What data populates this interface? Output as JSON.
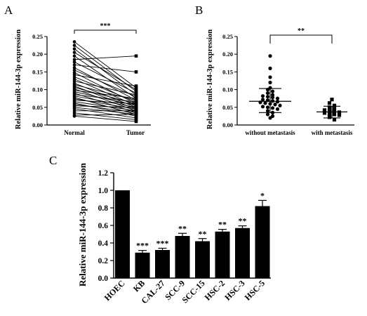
{
  "panels": {
    "a": {
      "label": "A"
    },
    "b": {
      "label": "B"
    },
    "c": {
      "label": "C"
    }
  },
  "chart_data": [
    {
      "panel": "A",
      "type": "line",
      "ylabel": "Relative miR-144-3p expression",
      "categories": [
        "Normal",
        "Tumor"
      ],
      "ylim": [
        0,
        0.25
      ],
      "yticks": [
        "0.00",
        "0.05",
        "0.10",
        "0.15",
        "0.20",
        "0.25"
      ],
      "significance": "***",
      "pairs": [
        [
          0.235,
          0.105
        ],
        [
          0.225,
          0.095
        ],
        [
          0.215,
          0.085
        ],
        [
          0.205,
          0.1
        ],
        [
          0.195,
          0.075
        ],
        [
          0.185,
          0.195
        ],
        [
          0.178,
          0.09
        ],
        [
          0.17,
          0.15
        ],
        [
          0.162,
          0.07
        ],
        [
          0.155,
          0.08
        ],
        [
          0.148,
          0.06
        ],
        [
          0.142,
          0.11
        ],
        [
          0.136,
          0.065
        ],
        [
          0.13,
          0.055
        ],
        [
          0.124,
          0.085
        ],
        [
          0.118,
          0.05
        ],
        [
          0.114,
          0.07
        ],
        [
          0.11,
          0.045
        ],
        [
          0.106,
          0.06
        ],
        [
          0.102,
          0.04
        ],
        [
          0.098,
          0.075
        ],
        [
          0.094,
          0.055
        ],
        [
          0.09,
          0.035
        ],
        [
          0.086,
          0.065
        ],
        [
          0.082,
          0.05
        ],
        [
          0.078,
          0.03
        ],
        [
          0.074,
          0.045
        ],
        [
          0.07,
          0.06
        ],
        [
          0.066,
          0.04
        ],
        [
          0.062,
          0.025
        ],
        [
          0.058,
          0.035
        ],
        [
          0.054,
          0.05
        ],
        [
          0.05,
          0.03
        ],
        [
          0.046,
          0.02
        ],
        [
          0.04,
          0.04
        ],
        [
          0.034,
          0.015
        ],
        [
          0.028,
          0.03
        ],
        [
          0.025,
          0.01
        ]
      ]
    },
    {
      "panel": "B",
      "type": "scatter",
      "ylabel": "Relative miR-144-3p expression",
      "categories": [
        "without metastasis",
        "with metastasis"
      ],
      "ylim": [
        0,
        0.25
      ],
      "yticks": [
        "0.00",
        "0.05",
        "0.10",
        "0.15",
        "0.20",
        "0.25"
      ],
      "significance": "**",
      "groups": [
        {
          "category": "without metastasis",
          "marker": "circle",
          "mean": 0.067,
          "sd_low": 0.035,
          "sd_high": 0.103,
          "points": [
            0.195,
            0.16,
            0.135,
            0.12,
            0.105,
            0.1,
            0.095,
            0.09,
            0.085,
            0.082,
            0.08,
            0.078,
            0.075,
            0.072,
            0.07,
            0.068,
            0.066,
            0.064,
            0.062,
            0.06,
            0.058,
            0.055,
            0.052,
            0.05,
            0.048,
            0.045,
            0.04,
            0.035,
            0.03,
            0.025,
            0.02
          ]
        },
        {
          "category": "with metastasis",
          "marker": "square",
          "mean": 0.037,
          "sd_low": 0.02,
          "sd_high": 0.053,
          "points": [
            0.072,
            0.062,
            0.055,
            0.05,
            0.045,
            0.042,
            0.04,
            0.038,
            0.036,
            0.034,
            0.032,
            0.03,
            0.028,
            0.022,
            0.015
          ]
        }
      ]
    },
    {
      "panel": "C",
      "type": "bar",
      "ylabel": "Relative miR-144-3p expression",
      "categories": [
        "HOEC",
        "KB",
        "CAL-27",
        "SCC-9",
        "SCC-15",
        "HSC-2",
        "HSC-3",
        "HSC-5"
      ],
      "values": [
        1.0,
        0.29,
        0.32,
        0.48,
        0.42,
        0.53,
        0.57,
        0.82
      ],
      "errors": [
        0.0,
        0.025,
        0.02,
        0.03,
        0.03,
        0.025,
        0.025,
        0.065
      ],
      "significance": [
        "",
        "***",
        "***",
        "**",
        "**",
        "**",
        "**",
        "*"
      ],
      "ylim": [
        0,
        1.2
      ],
      "yticks": [
        "0.0",
        "0.2",
        "0.4",
        "0.6",
        "0.8",
        "1.0",
        "1.2"
      ]
    }
  ]
}
